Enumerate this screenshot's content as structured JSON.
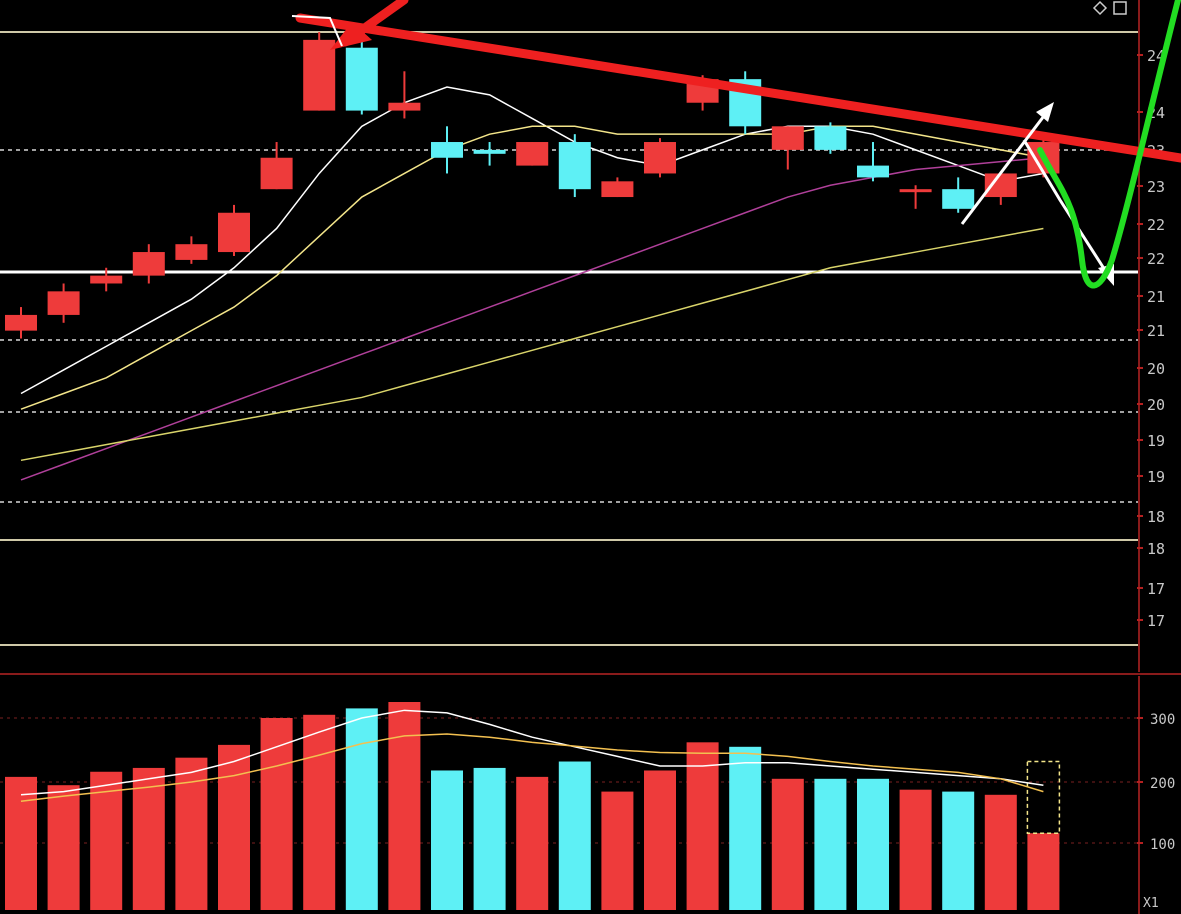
{
  "chart_data": [
    {
      "type": "candlestick",
      "panel": "price",
      "title": "",
      "xlabel": "",
      "ylabel": "",
      "candle_up_color": "#ee3b3b",
      "candle_down_color": "#5ef0f5",
      "ma_colors": [
        "#ffffff",
        "#f3e58a",
        "#b0409a",
        "#d9d46a"
      ],
      "grid": true,
      "y_tick_labels": [
        "24",
        "24",
        "23",
        "23",
        "22",
        "22",
        "21",
        "21",
        "20",
        "20",
        "19",
        "19",
        "18",
        "18",
        "17",
        "17"
      ],
      "candles": [
        {
          "o": 21.0,
          "c": 21.2,
          "h": 21.3,
          "l": 20.9
        },
        {
          "o": 21.2,
          "c": 21.5,
          "h": 21.6,
          "l": 21.1
        },
        {
          "o": 21.6,
          "c": 21.7,
          "h": 21.8,
          "l": 21.5
        },
        {
          "o": 21.7,
          "c": 22.0,
          "h": 22.1,
          "l": 21.6
        },
        {
          "o": 21.9,
          "c": 22.1,
          "h": 22.2,
          "l": 21.85
        },
        {
          "o": 22.0,
          "c": 22.5,
          "h": 22.6,
          "l": 21.95
        },
        {
          "o": 22.8,
          "c": 23.2,
          "h": 23.4,
          "l": 22.8
        },
        {
          "o": 23.8,
          "c": 24.7,
          "h": 24.8,
          "l": 23.8
        },
        {
          "o": 24.6,
          "c": 23.8,
          "h": 24.7,
          "l": 23.75
        },
        {
          "o": 23.8,
          "c": 23.9,
          "h": 24.3,
          "l": 23.7
        },
        {
          "o": 23.4,
          "c": 23.2,
          "h": 23.6,
          "l": 23.0
        },
        {
          "o": 23.3,
          "c": 23.25,
          "h": 23.4,
          "l": 23.1
        },
        {
          "o": 23.1,
          "c": 23.4,
          "h": 23.4,
          "l": 23.1
        },
        {
          "o": 23.4,
          "c": 22.8,
          "h": 23.5,
          "l": 22.7
        },
        {
          "o": 22.7,
          "c": 22.9,
          "h": 22.95,
          "l": 22.7
        },
        {
          "o": 23.0,
          "c": 23.4,
          "h": 23.45,
          "l": 22.95
        },
        {
          "o": 23.9,
          "c": 24.2,
          "h": 24.25,
          "l": 23.8
        },
        {
          "o": 24.2,
          "c": 23.6,
          "h": 24.3,
          "l": 23.5
        },
        {
          "o": 23.3,
          "c": 23.6,
          "h": 23.6,
          "l": 23.05
        },
        {
          "o": 23.6,
          "c": 23.3,
          "h": 23.65,
          "l": 23.25
        },
        {
          "o": 23.1,
          "c": 22.95,
          "h": 23.4,
          "l": 22.9
        },
        {
          "o": 22.8,
          "c": 22.8,
          "h": 22.85,
          "l": 22.55
        },
        {
          "o": 22.8,
          "c": 22.55,
          "h": 22.95,
          "l": 22.5
        },
        {
          "o": 22.7,
          "c": 23.0,
          "h": 23.0,
          "l": 22.6
        },
        {
          "o": 23.0,
          "c": 23.4,
          "h": 23.45,
          "l": 22.95
        }
      ],
      "ma_lines": [
        {
          "values": [
            20.2,
            20.5,
            20.8,
            21.1,
            21.4,
            21.8,
            22.3,
            23.0,
            23.6,
            23.9,
            24.1,
            24.0,
            23.7,
            23.4,
            23.2,
            23.1,
            23.3,
            23.5,
            23.6,
            23.6,
            23.5,
            23.3,
            23.1,
            22.9,
            23.0
          ]
        },
        {
          "values": [
            20.0,
            20.2,
            20.4,
            20.7,
            21.0,
            21.3,
            21.7,
            22.2,
            22.7,
            23.0,
            23.3,
            23.5,
            23.6,
            23.6,
            23.5,
            23.5,
            23.5,
            23.5,
            23.5,
            23.6,
            23.6,
            23.5,
            23.4,
            23.3,
            23.2
          ]
        },
        {
          "values": [
            19.1,
            19.3,
            19.5,
            19.7,
            19.9,
            20.1,
            20.3,
            20.5,
            20.7,
            20.9,
            21.1,
            21.3,
            21.5,
            21.7,
            21.9,
            22.1,
            22.3,
            22.5,
            22.7,
            22.85,
            22.95,
            23.05,
            23.1,
            23.15,
            23.2
          ]
        },
        {
          "values": [
            19.35,
            19.45,
            19.55,
            19.65,
            19.75,
            19.85,
            19.95,
            20.05,
            20.15,
            20.3,
            20.45,
            20.6,
            20.75,
            20.9,
            21.05,
            21.2,
            21.35,
            21.5,
            21.65,
            21.8,
            21.9,
            22.0,
            22.1,
            22.2,
            22.3
          ]
        }
      ]
    },
    {
      "type": "bar",
      "panel": "volume",
      "title": "",
      "xlabel": "",
      "ylabel": "",
      "y_tick_labels": [
        "300",
        "200",
        "100"
      ],
      "corner_label": "X1",
      "values": [
        208,
        195,
        216,
        222,
        238,
        258,
        300,
        305,
        315,
        325,
        218,
        222,
        208,
        232,
        185,
        218,
        262,
        255,
        205,
        205,
        205,
        188,
        185,
        180,
        120
      ],
      "volume_ma_lines": [
        {
          "color": "#ffffff",
          "values": [
            180,
            185,
            195,
            205,
            215,
            232,
            255,
            278,
            300,
            312,
            308,
            290,
            270,
            255,
            240,
            225,
            225,
            230,
            230,
            225,
            220,
            215,
            210,
            205,
            195
          ]
        },
        {
          "color": "#f3c050",
          "values": [
            170,
            178,
            185,
            192,
            200,
            210,
            225,
            242,
            260,
            272,
            275,
            270,
            262,
            256,
            250,
            246,
            245,
            245,
            240,
            232,
            225,
            220,
            215,
            205,
            185
          ]
        }
      ]
    }
  ]
}
